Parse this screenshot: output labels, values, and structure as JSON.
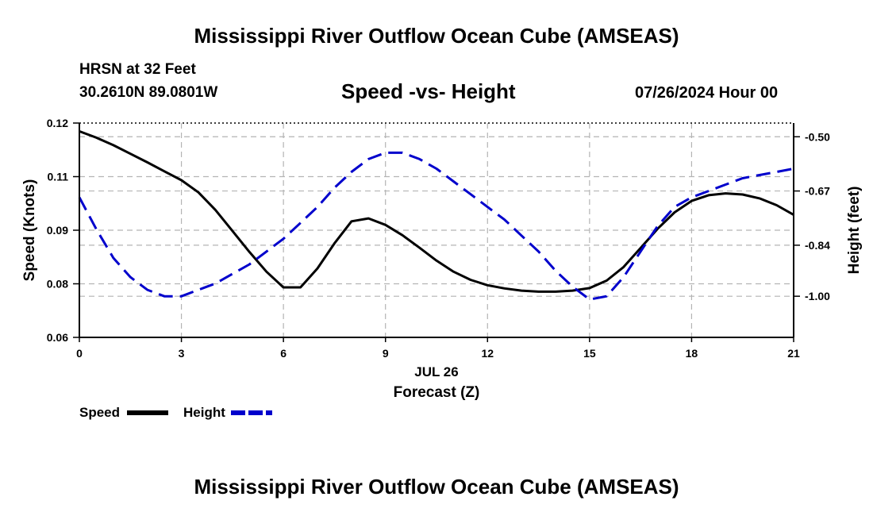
{
  "header": {
    "title": "Mississippi River Outflow Ocean Cube (AMSEAS)",
    "station": "HRSN at 32 Feet",
    "coords": "30.2610N  89.0801W",
    "chart_title": "Speed -vs- Height",
    "date": "07/26/2024 Hour 00"
  },
  "footer": {
    "title": "Mississippi River Outflow Ocean Cube (AMSEAS)"
  },
  "chart_data": {
    "type": "line",
    "title": "Speed -vs- Height",
    "xlabel": "Forecast (Z)",
    "xlabel_date": "JUL 26",
    "ylabel": "Speed (Knots)",
    "y2label": "Height (feet)",
    "xlim": [
      0,
      21
    ],
    "ylim": [
      0.06,
      0.12
    ],
    "y2lim": [
      -1.129,
      -0.457
    ],
    "x_ticks": [
      "0",
      "3",
      "6",
      "9",
      "12",
      "15",
      "18",
      "21"
    ],
    "y_ticks": [
      "0.06",
      "0.08",
      "0.09",
      "0.11",
      "0.12"
    ],
    "y_tick_values": [
      0.06,
      0.075,
      0.09,
      0.105,
      0.12
    ],
    "y2_ticks": [
      "-0.50",
      "-0.67",
      "-0.84",
      "-1.00"
    ],
    "y2_tick_values": [
      -0.5,
      -0.67,
      -0.84,
      -1.0
    ],
    "grid": true,
    "legend": "bottom-left",
    "series": [
      {
        "name": "Speed",
        "axis": "left",
        "color": "#000000",
        "dash": "solid",
        "x": [
          0,
          0.5,
          1,
          1.5,
          2,
          2.5,
          3,
          3.5,
          4,
          4.5,
          5,
          5.5,
          6,
          6.5,
          7,
          7.5,
          8,
          8.5,
          9,
          9.5,
          10,
          10.5,
          11,
          11.5,
          12,
          12.5,
          13,
          13.5,
          14,
          14.5,
          15,
          15.5,
          16,
          16.5,
          17,
          17.5,
          18,
          18.5,
          19,
          19.5,
          20,
          20.5,
          21
        ],
        "values": [
          0.1177,
          0.1159,
          0.1138,
          0.1114,
          0.109,
          0.1065,
          0.104,
          0.1006,
          0.0957,
          0.0898,
          0.0839,
          0.0784,
          0.074,
          0.074,
          0.0793,
          0.0863,
          0.0925,
          0.0933,
          0.0915,
          0.0886,
          0.0851,
          0.0815,
          0.0784,
          0.0761,
          0.0746,
          0.0737,
          0.0731,
          0.0728,
          0.0728,
          0.0731,
          0.0738,
          0.0759,
          0.0797,
          0.085,
          0.0904,
          0.095,
          0.0982,
          0.0998,
          0.1003,
          0.1,
          0.0989,
          0.097,
          0.0943
        ]
      },
      {
        "name": "Height",
        "axis": "right",
        "color": "#0000cc",
        "dash": "dashed",
        "x": [
          0,
          0.5,
          1,
          1.5,
          2,
          2.5,
          3,
          3.5,
          4,
          4.5,
          5,
          5.5,
          6,
          6.5,
          7,
          7.5,
          8,
          8.5,
          9,
          9.5,
          10,
          10.5,
          11,
          11.5,
          12,
          12.5,
          13,
          13.5,
          14,
          14.5,
          15,
          15.5,
          16,
          16.5,
          17,
          17.5,
          18,
          18.5,
          19,
          19.5,
          20,
          20.5,
          21
        ],
        "values": [
          -0.69,
          -0.79,
          -0.88,
          -0.94,
          -0.98,
          -1.0,
          -1.0,
          -0.98,
          -0.96,
          -0.93,
          -0.9,
          -0.86,
          -0.82,
          -0.77,
          -0.72,
          -0.66,
          -0.61,
          -0.57,
          -0.55,
          -0.55,
          -0.57,
          -0.6,
          -0.64,
          -0.68,
          -0.72,
          -0.76,
          -0.81,
          -0.86,
          -0.92,
          -0.97,
          -1.01,
          -1.0,
          -0.94,
          -0.86,
          -0.78,
          -0.72,
          -0.69,
          -0.67,
          -0.65,
          -0.63,
          -0.62,
          -0.61,
          -0.6
        ]
      }
    ]
  }
}
